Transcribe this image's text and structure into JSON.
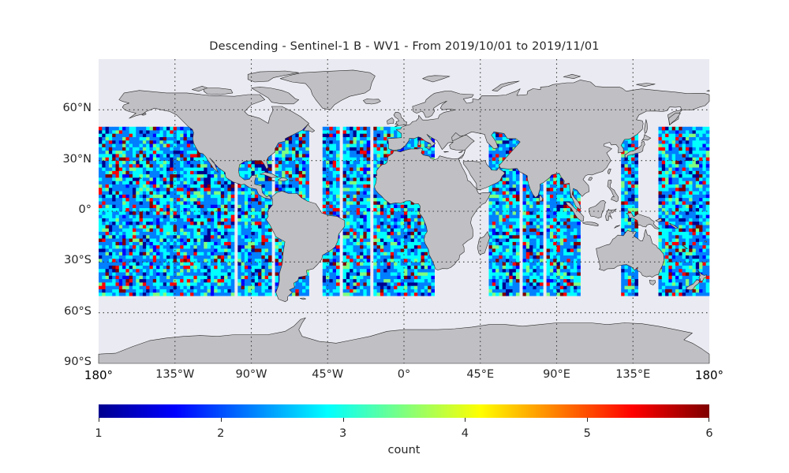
{
  "map": {
    "title": "Descending - Sentinel-1 B - WV1 - From 2019/10/01 to 2019/11/01",
    "projection": "plate-carree",
    "extent": {
      "lon": [
        -180,
        180
      ],
      "lat": [
        -90,
        90
      ]
    },
    "data_lat_range": [
      -50,
      50
    ],
    "lat_ticks": [
      {
        "value": 60,
        "label": "60°N"
      },
      {
        "value": 30,
        "label": "30°N"
      },
      {
        "value": 0,
        "label": "0°"
      },
      {
        "value": -30,
        "label": "30°S"
      },
      {
        "value": -60,
        "label": "60°S"
      },
      {
        "value": -90,
        "label": "90°S"
      }
    ],
    "lon_ticks": [
      {
        "value": -180,
        "label": "180°"
      },
      {
        "value": -135,
        "label": "135°W"
      },
      {
        "value": -90,
        "label": "90°W"
      },
      {
        "value": -45,
        "label": "45°W"
      },
      {
        "value": 0,
        "label": "0°"
      },
      {
        "value": 45,
        "label": "45°E"
      },
      {
        "value": 90,
        "label": "90°E"
      },
      {
        "value": 135,
        "label": "135°E"
      },
      {
        "value": 180,
        "label": "180°"
      }
    ],
    "colors": {
      "ocean": "#eaeaf2",
      "land": "#c0c0c4",
      "coast": "#2a2a2a",
      "grid": "#3a3a3a"
    }
  },
  "colorbar": {
    "label": "count",
    "range": [
      1,
      6
    ],
    "colormap": "jet",
    "ticks": [
      {
        "value": 1,
        "label": "1"
      },
      {
        "value": 2,
        "label": "2"
      },
      {
        "value": 3,
        "label": "3"
      },
      {
        "value": 4,
        "label": "4"
      },
      {
        "value": 5,
        "label": "5"
      },
      {
        "value": 6,
        "label": "6"
      }
    ]
  }
}
